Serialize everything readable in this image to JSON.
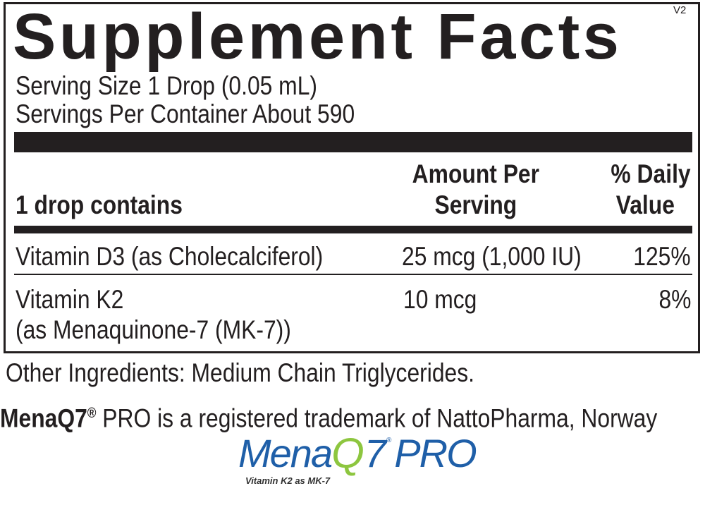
{
  "label": {
    "title": "Supplement Facts",
    "version": "V2",
    "serving_size": "Serving Size 1 Drop (0.05 mL)",
    "servings_per_container": "Servings Per Container About 590",
    "header": {
      "contains": "1 drop contains",
      "amount_line1": "Amount Per",
      "amount_line2": "Serving",
      "dv_line1": "% Daily",
      "dv_line2": "Value"
    },
    "rows": [
      {
        "name": "Vitamin D3 (as Cholecalciferol)",
        "amount": "25 mcg (1,000 IU)",
        "dv": "125%"
      },
      {
        "name": "Vitamin K2",
        "name_line2": "(as Menaquinone-7 (MK-7))",
        "amount": "10 mcg",
        "dv": "8%"
      }
    ]
  },
  "other_ingredients": "Other Ingredients: Medium Chain Triglycerides.",
  "trademark": {
    "brand": "MenaQ7",
    "reg": "®",
    "text": " PRO is a registered trademark of NattoPharma, Norway"
  },
  "logo": {
    "text_mena": "Mena",
    "text_q": "Q",
    "text_7": "7",
    "reg": "®",
    "text_pro": "PRO",
    "tagline": "Vitamin K2 as MK-7",
    "colors": {
      "blue": "#1f5fa8",
      "green": "#8dc63f"
    }
  }
}
